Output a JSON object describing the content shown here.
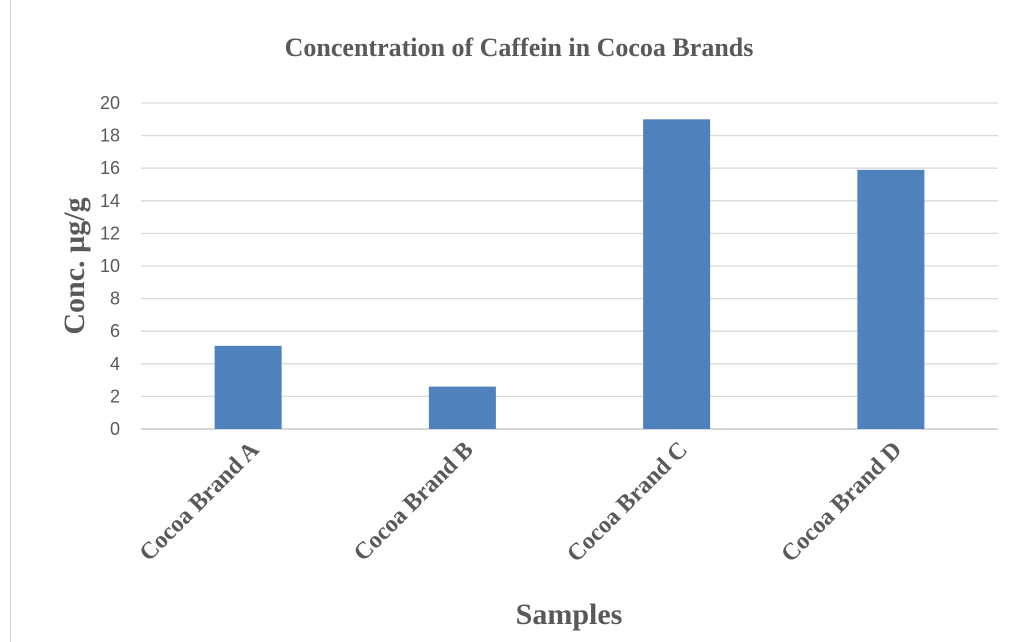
{
  "chart_data": {
    "type": "bar",
    "title": "Concentration of Caffein in Cocoa Brands",
    "xlabel": "Samples",
    "ylabel": "Conc. µg/g",
    "categories": [
      "Cocoa Brand A",
      "Cocoa Brand B",
      "Cocoa Brand C",
      "Cocoa Brand D"
    ],
    "values": [
      5.1,
      2.6,
      19.0,
      15.9
    ],
    "ylim": [
      0,
      20
    ],
    "yticks": [
      "0",
      "2",
      "4",
      "6",
      "8",
      "10",
      "12",
      "14",
      "16",
      "18",
      "20"
    ],
    "grid": true,
    "legend": "none",
    "bar_color": "#4f81bd"
  }
}
